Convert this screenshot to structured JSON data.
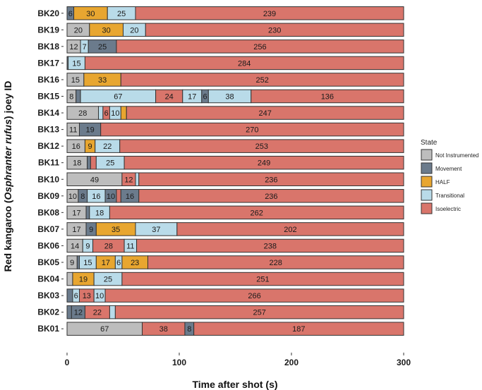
{
  "chart_data": {
    "type": "bar",
    "orientation": "horizontal",
    "stacked": true,
    "xlabel": "Time after shot (s)",
    "ylabel_parts": [
      "Red kangaroo (",
      "Osphranter rufus",
      ") joey ID"
    ],
    "xlim": [
      0,
      300
    ],
    "xticks": [
      0,
      100,
      200,
      300
    ],
    "grid": false,
    "legend": {
      "title": "State",
      "position": "right",
      "entries": [
        {
          "name": "Not Instrumented",
          "color": "#bdbdbd"
        },
        {
          "name": "Movement",
          "color": "#6b7b8c"
        },
        {
          "name": "HALF",
          "color": "#e8a630"
        },
        {
          "name": "Transitional",
          "color": "#b9dbe9"
        },
        {
          "name": "Isoelectric",
          "color": "#d9756b"
        }
      ]
    },
    "state_colors": {
      "Not Instrumented": "#bdbdbd",
      "Movement": "#6b7b8c",
      "HALF": "#e8a630",
      "Transitional": "#b9dbe9",
      "Isoelectric": "#d9756b"
    },
    "categories": [
      "BK20",
      "BK19",
      "BK18",
      "BK17",
      "BK16",
      "BK15",
      "BK14",
      "BK13",
      "BK12",
      "BK11",
      "BK10",
      "BK09",
      "BK08",
      "BK07",
      "BK06",
      "BK05",
      "BK04",
      "BK03",
      "BK02",
      "BK01"
    ],
    "rows": [
      {
        "id": "BK20",
        "segments": [
          {
            "state": "Movement",
            "value": 6
          },
          {
            "state": "HALF",
            "value": 30
          },
          {
            "state": "Transitional",
            "value": 25
          },
          {
            "state": "Isoelectric",
            "value": 239
          }
        ]
      },
      {
        "id": "BK19",
        "segments": [
          {
            "state": "Not Instrumented",
            "value": 20
          },
          {
            "state": "HALF",
            "value": 30
          },
          {
            "state": "Transitional",
            "value": 20
          },
          {
            "state": "Isoelectric",
            "value": 230
          }
        ]
      },
      {
        "id": "BK18",
        "segments": [
          {
            "state": "Not Instrumented",
            "value": 12
          },
          {
            "state": "Transitional",
            "value": 7
          },
          {
            "state": "Movement",
            "value": 25
          },
          {
            "state": "Isoelectric",
            "value": 256
          }
        ]
      },
      {
        "id": "BK17",
        "segments": [
          {
            "state": "Movement",
            "value": 1
          },
          {
            "state": "Transitional",
            "value": 15
          },
          {
            "state": "Isoelectric",
            "value": 284
          }
        ]
      },
      {
        "id": "BK16",
        "segments": [
          {
            "state": "Not Instrumented",
            "value": 15
          },
          {
            "state": "HALF",
            "value": 33
          },
          {
            "state": "Isoelectric",
            "value": 252
          }
        ]
      },
      {
        "id": "BK15",
        "segments": [
          {
            "state": "Not Instrumented",
            "value": 8
          },
          {
            "state": "Movement",
            "value": 4
          },
          {
            "state": "Transitional",
            "value": 67
          },
          {
            "state": "Isoelectric",
            "value": 24
          },
          {
            "state": "Transitional",
            "value": 17
          },
          {
            "state": "Movement",
            "value": 6
          },
          {
            "state": "Transitional",
            "value": 38
          },
          {
            "state": "Isoelectric",
            "value": 136
          }
        ]
      },
      {
        "id": "BK14",
        "segments": [
          {
            "state": "Not Instrumented",
            "value": 28
          },
          {
            "state": "Transitional",
            "value": 4
          },
          {
            "state": "Isoelectric",
            "value": 6
          },
          {
            "state": "Transitional",
            "value": 10
          },
          {
            "state": "HALF",
            "value": 5
          },
          {
            "state": "Isoelectric",
            "value": 247
          }
        ]
      },
      {
        "id": "BK13",
        "segments": [
          {
            "state": "Not Instrumented",
            "value": 11
          },
          {
            "state": "Movement",
            "value": 19
          },
          {
            "state": "Isoelectric",
            "value": 270
          }
        ]
      },
      {
        "id": "BK12",
        "segments": [
          {
            "state": "Not Instrumented",
            "value": 16
          },
          {
            "state": "HALF",
            "value": 9
          },
          {
            "state": "Transitional",
            "value": 22
          },
          {
            "state": "Isoelectric",
            "value": 253
          }
        ]
      },
      {
        "id": "BK11",
        "segments": [
          {
            "state": "Not Instrumented",
            "value": 18
          },
          {
            "state": "Movement",
            "value": 3
          },
          {
            "state": "Isoelectric",
            "value": 5
          },
          {
            "state": "Transitional",
            "value": 25
          },
          {
            "state": "Isoelectric",
            "value": 249
          }
        ]
      },
      {
        "id": "BK10",
        "segments": [
          {
            "state": "Not Instrumented",
            "value": 49
          },
          {
            "state": "Isoelectric",
            "value": 12
          },
          {
            "state": "Transitional",
            "value": 3
          },
          {
            "state": "Isoelectric",
            "value": 236
          }
        ]
      },
      {
        "id": "BK09",
        "segments": [
          {
            "state": "Not Instrumented",
            "value": 10
          },
          {
            "state": "Movement",
            "value": 8
          },
          {
            "state": "Transitional",
            "value": 16
          },
          {
            "state": "Movement",
            "value": 10
          },
          {
            "state": "Isoelectric",
            "value": 4
          },
          {
            "state": "Movement",
            "value": 16
          },
          {
            "state": "Isoelectric",
            "value": 236
          }
        ]
      },
      {
        "id": "BK08",
        "segments": [
          {
            "state": "Not Instrumented",
            "value": 17
          },
          {
            "state": "Movement",
            "value": 3
          },
          {
            "state": "Transitional",
            "value": 18
          },
          {
            "state": "Isoelectric",
            "value": 262
          }
        ]
      },
      {
        "id": "BK07",
        "segments": [
          {
            "state": "Not Instrumented",
            "value": 17
          },
          {
            "state": "Movement",
            "value": 9
          },
          {
            "state": "HALF",
            "value": 35
          },
          {
            "state": "Transitional",
            "value": 37
          },
          {
            "state": "Isoelectric",
            "value": 202
          }
        ]
      },
      {
        "id": "BK06",
        "segments": [
          {
            "state": "Not Instrumented",
            "value": 14
          },
          {
            "state": "Transitional",
            "value": 9
          },
          {
            "state": "Isoelectric",
            "value": 28
          },
          {
            "state": "Transitional",
            "value": 11
          },
          {
            "state": "Isoelectric",
            "value": 238
          }
        ]
      },
      {
        "id": "BK05",
        "segments": [
          {
            "state": "Not Instrumented",
            "value": 9
          },
          {
            "state": "Movement",
            "value": 2
          },
          {
            "state": "Transitional",
            "value": 15
          },
          {
            "state": "HALF",
            "value": 17
          },
          {
            "state": "Transitional",
            "value": 6
          },
          {
            "state": "HALF",
            "value": 23
          },
          {
            "state": "Isoelectric",
            "value": 228
          }
        ]
      },
      {
        "id": "BK04",
        "segments": [
          {
            "state": "Not Instrumented",
            "value": 5
          },
          {
            "state": "HALF",
            "value": 19
          },
          {
            "state": "Transitional",
            "value": 25
          },
          {
            "state": "Isoelectric",
            "value": 251
          }
        ]
      },
      {
        "id": "BK03",
        "segments": [
          {
            "state": "Movement",
            "value": 5
          },
          {
            "state": "Transitional",
            "value": 6
          },
          {
            "state": "Isoelectric",
            "value": 13
          },
          {
            "state": "Transitional",
            "value": 10
          },
          {
            "state": "Isoelectric",
            "value": 266
          }
        ]
      },
      {
        "id": "BK02",
        "segments": [
          {
            "state": "Movement",
            "value": 4
          },
          {
            "state": "Movement",
            "value": 12
          },
          {
            "state": "Isoelectric",
            "value": 22
          },
          {
            "state": "Transitional",
            "value": 5
          },
          {
            "state": "Isoelectric",
            "value": 257
          }
        ]
      },
      {
        "id": "BK01",
        "segments": [
          {
            "state": "Not Instrumented",
            "value": 67
          },
          {
            "state": "Isoelectric",
            "value": 38
          },
          {
            "state": "Movement",
            "value": 8
          },
          {
            "state": "Isoelectric",
            "value": 187
          }
        ]
      }
    ]
  }
}
